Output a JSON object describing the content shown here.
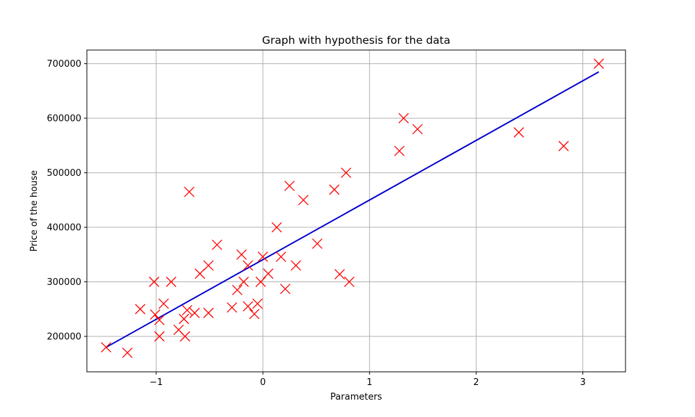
{
  "colors": {
    "marker": "#ff0000",
    "hypothesis_line": "#0000cc",
    "grid": "#b0b0b0",
    "axes": "#000000"
  },
  "chart_data": {
    "type": "scatter",
    "title": "Graph with hypothesis for the data",
    "xlabel": "Parameters",
    "ylabel": "Price of the house",
    "xlim": [
      -1.65,
      3.4
    ],
    "ylim": [
      135000,
      725000
    ],
    "xticks": [
      -1,
      0,
      1,
      2,
      3
    ],
    "xtick_labels": [
      "−1",
      "0",
      "1",
      "2",
      "3"
    ],
    "yticks": [
      200000,
      300000,
      400000,
      500000,
      600000,
      700000
    ],
    "ytick_labels": [
      "200000",
      "300000",
      "400000",
      "500000",
      "600000",
      "700000"
    ],
    "grid": true,
    "marker": "x",
    "series": [
      {
        "kind": "scatter",
        "points": [
          [
            -1.47,
            180000
          ],
          [
            -1.27,
            170000
          ],
          [
            -1.15,
            250000
          ],
          [
            -1.02,
            300000
          ],
          [
            -1.01,
            240000
          ],
          [
            -0.97,
            230000
          ],
          [
            -0.97,
            200000
          ],
          [
            -0.93,
            260000
          ],
          [
            -0.86,
            300000
          ],
          [
            -0.79,
            212000
          ],
          [
            -0.74,
            232000
          ],
          [
            -0.73,
            200000
          ],
          [
            -0.71,
            248000
          ],
          [
            -0.69,
            465000
          ],
          [
            -0.64,
            243000
          ],
          [
            -0.59,
            315000
          ],
          [
            -0.51,
            330000
          ],
          [
            -0.51,
            243000
          ],
          [
            -0.43,
            368000
          ],
          [
            -0.29,
            253000
          ],
          [
            -0.24,
            285000
          ],
          [
            -0.2,
            350000
          ],
          [
            -0.18,
            300000
          ],
          [
            -0.14,
            330000
          ],
          [
            -0.14,
            255000
          ],
          [
            -0.08,
            241000
          ],
          [
            -0.05,
            260000
          ],
          [
            -0.02,
            300000
          ],
          [
            0.0,
            346000
          ],
          [
            0.05,
            315000
          ],
          [
            0.13,
            400000
          ],
          [
            0.17,
            346000
          ],
          [
            0.21,
            287000
          ],
          [
            0.25,
            476000
          ],
          [
            0.31,
            330000
          ],
          [
            0.38,
            450000
          ],
          [
            0.51,
            370000
          ],
          [
            0.67,
            469000
          ],
          [
            0.72,
            314000
          ],
          [
            0.78,
            500000
          ],
          [
            0.81,
            300000
          ],
          [
            1.28,
            540000
          ],
          [
            1.32,
            600000
          ],
          [
            1.45,
            580000
          ],
          [
            2.4,
            574000
          ],
          [
            2.82,
            549000
          ],
          [
            3.15,
            700000
          ]
        ]
      },
      {
        "kind": "line",
        "points": [
          [
            -1.47,
            180000
          ],
          [
            3.15,
            685000
          ]
        ]
      }
    ]
  }
}
